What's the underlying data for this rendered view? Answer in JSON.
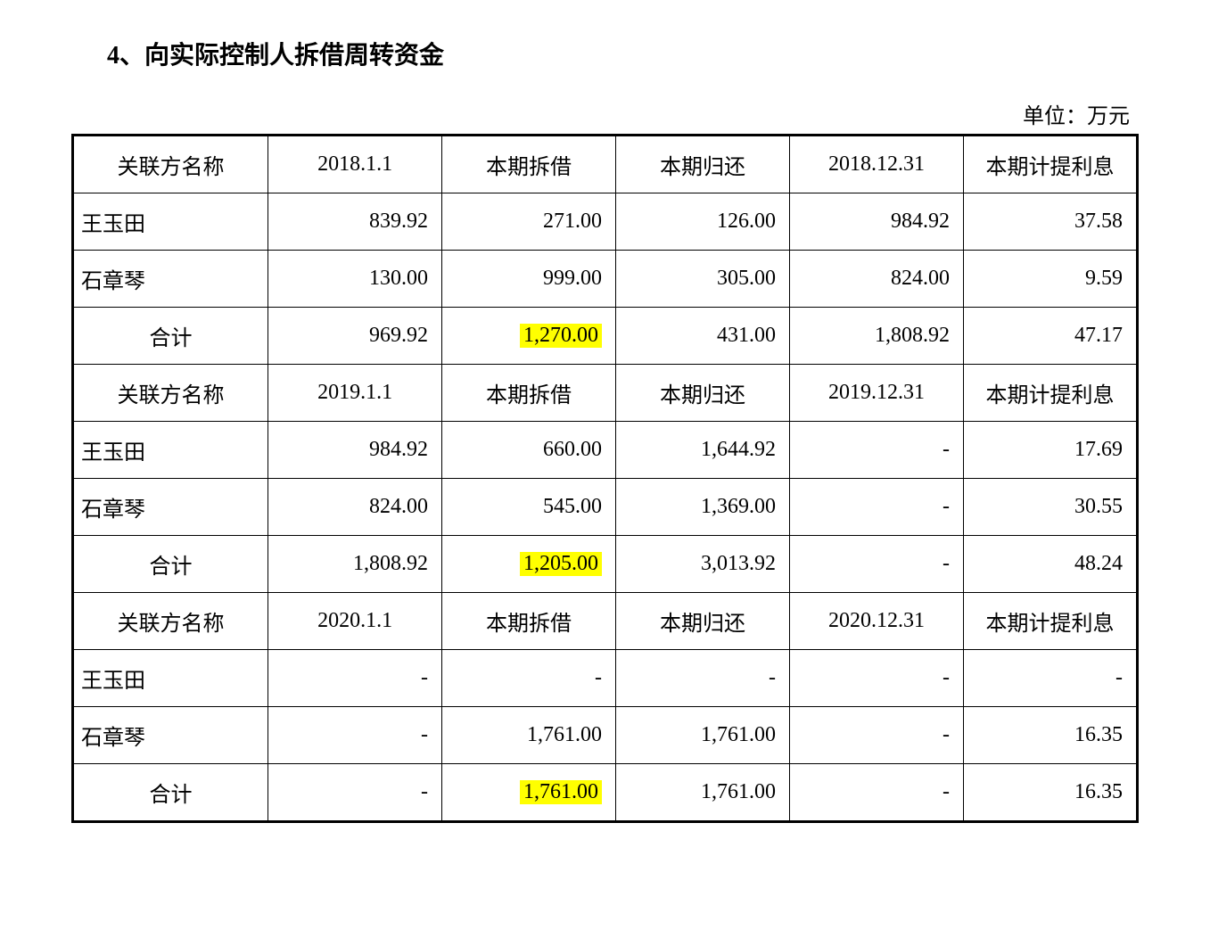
{
  "title": "4、向实际控制人拆借周转资金",
  "unit_label": "单位：万元",
  "colors": {
    "text": "#000000",
    "border": "#000000",
    "highlight": "#ffff00",
    "background": "#ffffff"
  },
  "typography": {
    "title_fontsize": 28,
    "title_weight": "bold",
    "cell_fontsize": 24,
    "font_family": "SimSun"
  },
  "table": {
    "sections": [
      {
        "header": [
          "关联方名称",
          "2018.1.1",
          "本期拆借",
          "本期归还",
          "2018.12.31",
          "本期计提利息"
        ],
        "rows": [
          {
            "name": "王玉田",
            "vals": [
              "839.92",
              "271.00",
              "126.00",
              "984.92",
              "37.58"
            ],
            "highlight_col": null
          },
          {
            "name": "石章琴",
            "vals": [
              "130.00",
              "999.00",
              "305.00",
              "824.00",
              "9.59"
            ],
            "highlight_col": null
          },
          {
            "name": "合计",
            "vals": [
              "969.92",
              "1,270.00",
              "431.00",
              "1,808.92",
              "47.17"
            ],
            "highlight_col": 1,
            "name_center": true
          }
        ]
      },
      {
        "header": [
          "关联方名称",
          "2019.1.1",
          "本期拆借",
          "本期归还",
          "2019.12.31",
          "本期计提利息"
        ],
        "rows": [
          {
            "name": "王玉田",
            "vals": [
              "984.92",
              "660.00",
              "1,644.92",
              "-",
              "17.69"
            ],
            "highlight_col": null
          },
          {
            "name": "石章琴",
            "vals": [
              "824.00",
              "545.00",
              "1,369.00",
              "-",
              "30.55"
            ],
            "highlight_col": null
          },
          {
            "name": "合计",
            "vals": [
              "1,808.92",
              "1,205.00",
              "3,013.92",
              "-",
              "48.24"
            ],
            "highlight_col": 1,
            "name_center": true
          }
        ]
      },
      {
        "header": [
          "关联方名称",
          "2020.1.1",
          "本期拆借",
          "本期归还",
          "2020.12.31",
          "本期计提利息"
        ],
        "rows": [
          {
            "name": "王玉田",
            "vals": [
              "-",
              "-",
              "-",
              "-",
              "-"
            ],
            "highlight_col": null
          },
          {
            "name": "石章琴",
            "vals": [
              "-",
              "1,761.00",
              "1,761.00",
              "-",
              "16.35"
            ],
            "highlight_col": null
          },
          {
            "name": "合计",
            "vals": [
              "-",
              "1,761.00",
              "1,761.00",
              "-",
              "16.35"
            ],
            "highlight_col": 1,
            "name_center": true
          }
        ]
      }
    ]
  }
}
